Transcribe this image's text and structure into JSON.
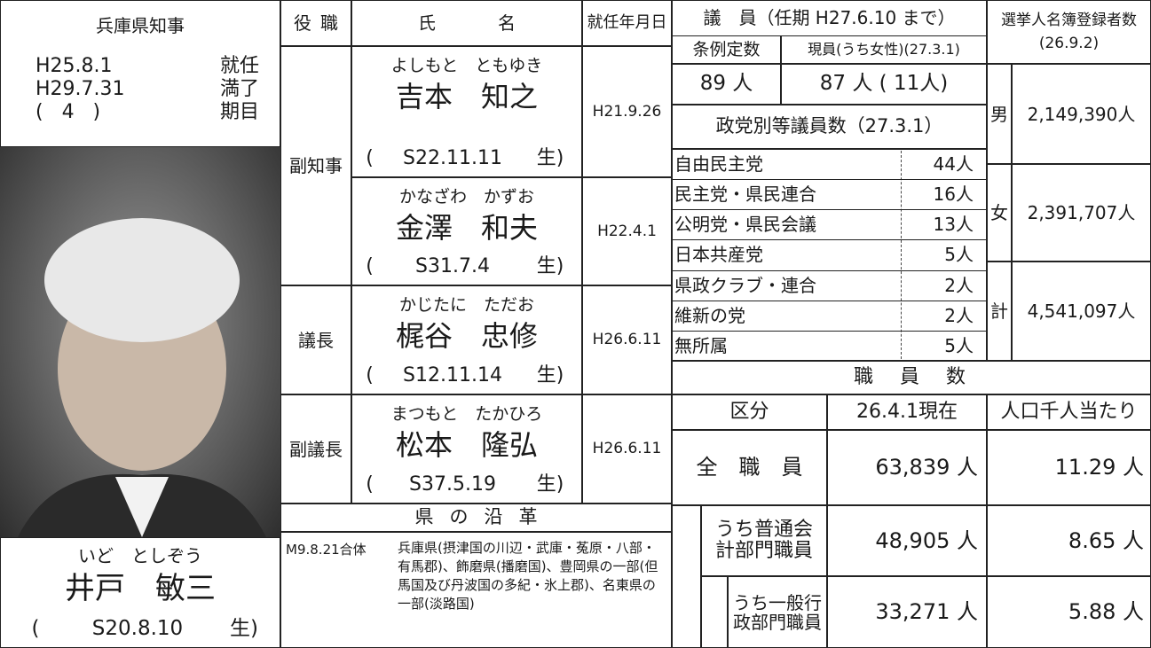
{
  "governor": {
    "title": "兵庫県知事",
    "terms": [
      [
        "H25.8.1",
        "就任"
      ],
      [
        "H29.7.31",
        "満了"
      ],
      [
        "(   4   )",
        "期目"
      ]
    ],
    "furigana": "いど　としぞう",
    "name": "井戸　敏三",
    "birth": [
      "(",
      "S20.8.10",
      "生)"
    ]
  },
  "officers": {
    "headers": [
      "役職",
      "氏名",
      "就任年月日"
    ],
    "roles": [
      "副知事",
      "議長",
      "副議長"
    ],
    "rows": [
      {
        "furigana": "よしもと　ともゆき",
        "name": "吉本　知之",
        "birth": [
          "(",
          "S22.11.11",
          "生)"
        ],
        "date": "H21.9.26"
      },
      {
        "furigana": "かなざわ　かずお",
        "name": "金澤　和夫",
        "birth": [
          "(",
          "S31.7.4",
          "生)"
        ],
        "date": "H22.4.1"
      },
      {
        "furigana": "かじたに　ただお",
        "name": "梶谷　忠修",
        "birth": [
          "(",
          "S12.11.14",
          "生)"
        ],
        "date": "H26.6.11"
      },
      {
        "furigana": "まつもと　たかひろ",
        "name": "松本　隆弘",
        "birth": [
          "(",
          "S37.5.19",
          "生)"
        ],
        "date": "H26.6.11"
      }
    ]
  },
  "history": {
    "title": "県の沿革",
    "date": "M9.8.21合体",
    "text": "兵庫県(摂津国の川辺・武庫・菟原・八部・有馬郡)、飾磨県(播磨国)、豊岡県の一部(但馬国及び丹波国の多紀・氷上郡)、名東県の一部(淡路国)"
  },
  "council": {
    "title": "議　員（任期 H27.6.10 まで）",
    "quota_label": "条例定数",
    "current_label": "現員(うち女性)(27.3.1)",
    "quota": "89 人",
    "current": "87 人 ( 11人)",
    "party_title": "政党別等議員数（27.3.1）",
    "parties": [
      [
        "自由民主党",
        "44人"
      ],
      [
        "民主党・県民連合",
        "16人"
      ],
      [
        "公明党・県民会議",
        "13人"
      ],
      [
        "日本共産党",
        "5人"
      ],
      [
        "県政クラブ・連合",
        "2人"
      ],
      [
        "維新の党",
        "2人"
      ],
      [
        "無所属",
        "5人"
      ]
    ]
  },
  "voters": {
    "title": "選挙人名簿登録者数",
    "date": "(26.9.2)",
    "rows": [
      [
        "男",
        "2,149,390人"
      ],
      [
        "女",
        "2,391,707人"
      ],
      [
        "計",
        "4,541,097人"
      ]
    ]
  },
  "staff": {
    "title": "職　員　数",
    "headers": [
      "区分",
      "26.4.1現在",
      "人口千人当たり"
    ],
    "rows": [
      [
        "全　職　員",
        "63,839 人",
        "11.29 人"
      ],
      [
        "うち普通会計部門職員",
        "48,905 人",
        "8.65 人"
      ],
      [
        "うち一般行政部門職員",
        "33,271 人",
        "5.88 人"
      ]
    ]
  }
}
